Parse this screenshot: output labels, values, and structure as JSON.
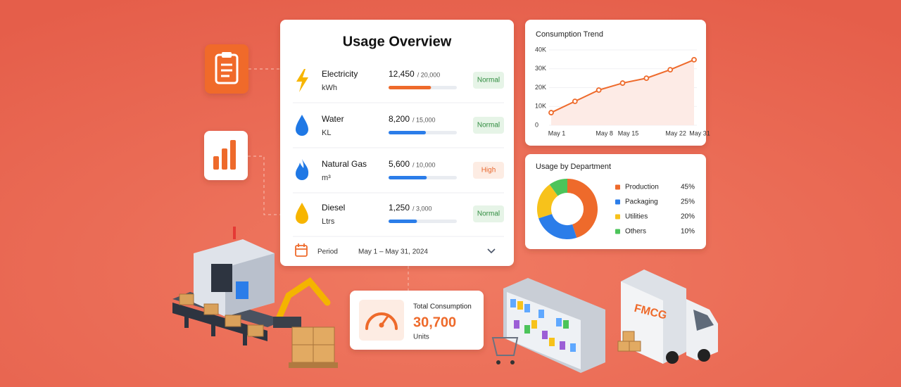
{
  "usage": {
    "title": "Usage Overview",
    "items": [
      {
        "name": "Electricity",
        "unit": "kWh",
        "value": 12450,
        "value_label": "12,450",
        "max": 20000,
        "max_label": "/ 20,000",
        "status": "Normal",
        "color": "#ee6a2b",
        "status_color": "#2e8b3e",
        "status_bg": "#e6f4e7"
      },
      {
        "name": "Water",
        "unit": "KL",
        "value": 8200,
        "value_label": "8,200",
        "max": 15000,
        "max_label": "/ 15,000",
        "status": "Normal",
        "color": "#2b7de9",
        "status_color": "#2e8b3e",
        "status_bg": "#e6f4e7"
      },
      {
        "name": "Natural Gas",
        "unit": "m³",
        "value": 5600,
        "value_label": "5,600",
        "max": 10000,
        "max_label": "/ 10,000",
        "status": "High",
        "color": "#2b7de9",
        "status_color": "#e8672e",
        "status_bg": "#fdece3"
      },
      {
        "name": "Diesel",
        "unit": "Ltrs",
        "value": 1250,
        "value_label": "1,250",
        "max": 3000,
        "max_label": "/ 3,000",
        "status": "Normal",
        "color": "#2b7de9",
        "status_color": "#2e8b3e",
        "status_bg": "#e6f4e7"
      }
    ],
    "period": {
      "label": "Period",
      "value": "May 1 – May 31, 2024"
    }
  },
  "chart_data": [
    {
      "type": "line",
      "title": "Consumption Trend",
      "color": "#ee6a2b",
      "categories": [
        "May 1",
        null,
        "May 8",
        "May 15",
        null,
        "May 22",
        "May 31"
      ],
      "values": [
        6700,
        12700,
        18700,
        22400,
        25000,
        29500,
        34800
      ],
      "ylim": [
        0,
        40000
      ],
      "yticks": [
        0,
        {
          "value": 10000,
          "label": "10K"
        },
        {
          "value": 20000,
          "label": "20K"
        },
        {
          "value": 30000,
          "label": "30K"
        },
        {
          "value": 40000,
          "label": "40K"
        }
      ]
    },
    {
      "type": "donut",
      "title": "Usage by Department",
      "categories": [
        "Production",
        "Packaging",
        "Utilities",
        "Others"
      ],
      "values": [
        45,
        25,
        20,
        10
      ],
      "value_labels": [
        "45%",
        "25%",
        "20%",
        "10%"
      ],
      "colors": [
        "#ee6a2b",
        "#2b7de9",
        "#f7c21b",
        "#4cc45a"
      ]
    }
  ],
  "total": {
    "label": "Total Consumption",
    "value_label": "30,700",
    "unit": "Units"
  },
  "illustration": {
    "truck_label": "FMCG"
  }
}
